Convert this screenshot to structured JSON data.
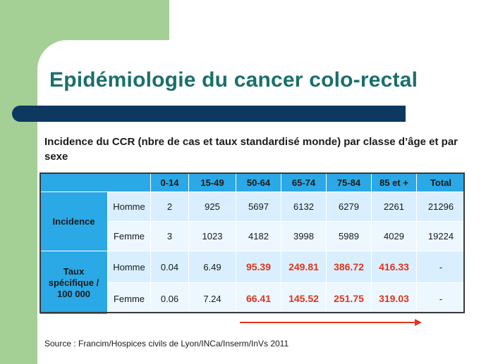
{
  "slide": {
    "title": "Epidémiologie du cancer colo-rectal",
    "subtitle": "Incidence du CCR (nbre de cas et taux standardisé monde) par classe d’âge et par sexe",
    "source": "Source : Francim/Hospices civils de Lyon/INCa/Inserm/InVs 2011",
    "colors": {
      "green_band": "#a4cf95",
      "title_text": "#1a6f6b",
      "title_bar": "#0d3860",
      "table_header": "#2ba8e6",
      "table_cell": "#d9efff",
      "highlight_text": "#e0341a",
      "arrow": "#e0341a"
    }
  },
  "table": {
    "columns": [
      "0-14",
      "15-49",
      "50-64",
      "65-74",
      "75-84",
      "85 et +",
      "Total"
    ],
    "groups": [
      {
        "label": "Incidence",
        "rows": [
          {
            "sex": "Homme",
            "values": [
              "2",
              "925",
              "5697",
              "6132",
              "6279",
              "2261",
              "21296"
            ]
          },
          {
            "sex": "Femme",
            "values": [
              "3",
              "1023",
              "4182",
              "3998",
              "5989",
              "4029",
              "19224"
            ]
          }
        ]
      },
      {
        "label": "Taux spécifique / 100 000",
        "rows": [
          {
            "sex": "Homme",
            "values": [
              "0.04",
              "6.49",
              "95.39",
              "249.81",
              "386.72",
              "416.33",
              "-"
            ]
          },
          {
            "sex": "Femme",
            "values": [
              "0.06",
              "7.24",
              "66.41",
              "145.52",
              "251.75",
              "319.03",
              "-"
            ]
          }
        ]
      }
    ]
  }
}
